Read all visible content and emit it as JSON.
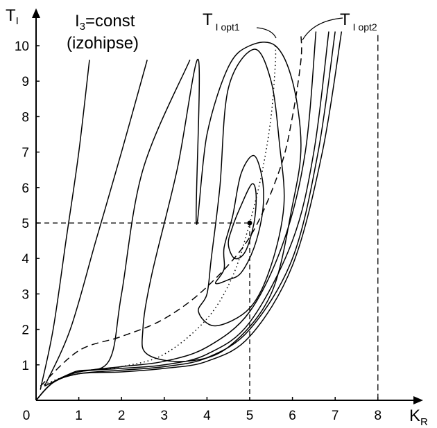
{
  "chart_data": {
    "type": "line",
    "xlabel_main": "K",
    "xlabel_sub": "R",
    "ylabel_main": "T",
    "ylabel_sub": "I",
    "xlim": [
      0,
      9
    ],
    "ylim": [
      0,
      11
    ],
    "x_ticks": [
      "0",
      "1",
      "2",
      "3",
      "4",
      "5",
      "6",
      "7",
      "8"
    ],
    "y_ticks": [
      "1",
      "2",
      "3",
      "4",
      "5",
      "6",
      "7",
      "8",
      "9",
      "10"
    ],
    "annotations": {
      "izo_line1_main": "I",
      "izo_line1_sub": "3",
      "izo_line1_rest": "=const",
      "izo_line2": "(izohipse)",
      "opt1_main": "T",
      "opt1_sub": "I opt1",
      "opt2_main": "T",
      "opt2_sub": "I opt2"
    },
    "optimum_point": {
      "x": 5,
      "y": 5
    },
    "opt2_vertical_x": 8,
    "opt2_curve": [
      [
        0.1,
        0.4
      ],
      [
        1,
        1.4
      ],
      [
        2,
        1.8
      ],
      [
        3,
        2.3
      ],
      [
        4,
        3.2
      ],
      [
        5,
        4.6
      ],
      [
        5.7,
        6.5
      ],
      [
        6,
        8
      ],
      [
        6.2,
        9.6
      ],
      [
        6.2,
        10.3
      ]
    ],
    "opt1_curve": [
      [
        0.1,
        0.4
      ],
      [
        1,
        0.8
      ],
      [
        2,
        0.95
      ],
      [
        3,
        1.3
      ],
      [
        4,
        2.3
      ],
      [
        4.6,
        3.5
      ],
      [
        5,
        5
      ],
      [
        5.3,
        6.5
      ],
      [
        5.5,
        8
      ],
      [
        5.6,
        9.5
      ],
      [
        5.6,
        10
      ]
    ],
    "open_series": [
      [
        [
          0.1,
          0.3
        ],
        [
          0.4,
          2
        ],
        [
          0.7,
          4.5
        ],
        [
          1,
          7
        ],
        [
          1.25,
          9.6
        ]
      ],
      [
        [
          0.2,
          0.4
        ],
        [
          0.8,
          2
        ],
        [
          1.4,
          4.5
        ],
        [
          2,
          7
        ],
        [
          2.6,
          9.6
        ]
      ],
      [
        [
          0.2,
          0.4
        ],
        [
          0.9,
          0.8
        ],
        [
          1.7,
          1.1
        ],
        [
          2,
          3
        ],
        [
          2.5,
          6.5
        ],
        [
          3.6,
          9.6
        ]
      ],
      [
        [
          0,
          0
        ],
        [
          0.4,
          0.5
        ],
        [
          1,
          0.8
        ],
        [
          2,
          0.95
        ],
        [
          3,
          1.1
        ],
        [
          4,
          1.5
        ],
        [
          5,
          2.5
        ],
        [
          5.8,
          4.5
        ],
        [
          6.3,
          7
        ],
        [
          6.55,
          10.4
        ]
      ],
      [
        [
          0,
          0
        ],
        [
          0.4,
          0.5
        ],
        [
          1,
          0.8
        ],
        [
          2,
          0.9
        ],
        [
          3,
          1
        ],
        [
          4,
          1.3
        ],
        [
          5,
          2.2
        ],
        [
          6,
          4.5
        ],
        [
          6.5,
          7
        ],
        [
          6.85,
          10.4
        ]
      ],
      [
        [
          0,
          0
        ],
        [
          0.4,
          0.5
        ],
        [
          1,
          0.75
        ],
        [
          2,
          0.85
        ],
        [
          3,
          0.95
        ],
        [
          4,
          1.2
        ],
        [
          5,
          2
        ],
        [
          6,
          4
        ],
        [
          6.6,
          7
        ],
        [
          7,
          10.4
        ]
      ],
      [
        [
          0,
          0
        ],
        [
          0.4,
          0.5
        ],
        [
          1,
          0.75
        ],
        [
          2,
          0.8
        ],
        [
          3,
          0.9
        ],
        [
          4,
          1.1
        ],
        [
          5,
          1.8
        ],
        [
          6,
          3.8
        ],
        [
          6.7,
          7
        ],
        [
          7.15,
          10.4
        ]
      ]
    ],
    "closed_series": [
      [
        [
          3.8,
          9.6
        ],
        [
          3.3,
          6.5
        ],
        [
          2.7,
          3.5
        ],
        [
          2.5,
          2
        ],
        [
          2.6,
          1.3
        ],
        [
          3.5,
          1.1
        ],
        [
          4.5,
          1.5
        ],
        [
          5.5,
          3
        ],
        [
          6,
          5.5
        ],
        [
          6.2,
          7.2
        ],
        [
          6,
          9
        ],
        [
          5.6,
          10
        ],
        [
          5,
          10
        ],
        [
          4.5,
          9.4
        ],
        [
          4,
          7.5
        ],
        [
          3.75,
          5
        ]
      ],
      [
        [
          4,
          3
        ],
        [
          3.8,
          2.5
        ],
        [
          4.2,
          2.1
        ],
        [
          5,
          2.6
        ],
        [
          5.5,
          3.8
        ],
        [
          5.8,
          5.5
        ],
        [
          5.7,
          7.2
        ],
        [
          5.5,
          9
        ],
        [
          5.1,
          9.9
        ],
        [
          4.5,
          8.8
        ],
        [
          4.3,
          6
        ],
        [
          4.1,
          4
        ]
      ],
      [
        [
          4.4,
          3.7
        ],
        [
          4.2,
          3.3
        ],
        [
          4.5,
          3.4
        ],
        [
          4.8,
          3.6
        ],
        [
          5.1,
          4.3
        ],
        [
          5.3,
          5.3
        ],
        [
          5.3,
          6.2
        ],
        [
          5.1,
          6.9
        ],
        [
          4.8,
          6.4
        ],
        [
          4.6,
          5.2
        ],
        [
          4.4,
          4.3
        ]
      ],
      [
        [
          4.5,
          4.4
        ],
        [
          4.65,
          4
        ],
        [
          4.9,
          4.2
        ],
        [
          5.1,
          5
        ],
        [
          5.15,
          5.8
        ],
        [
          5.05,
          6.1
        ],
        [
          4.8,
          5.5
        ],
        [
          4.6,
          4.9
        ]
      ]
    ]
  }
}
